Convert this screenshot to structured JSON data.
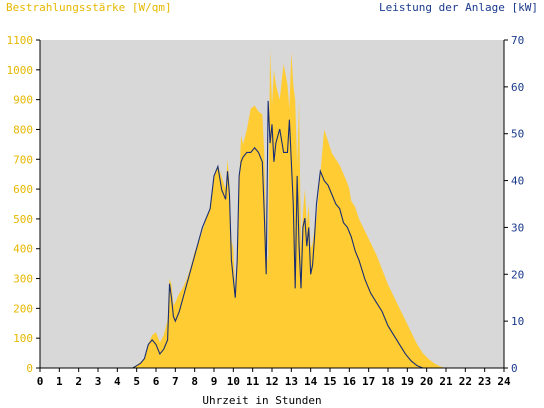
{
  "colors": {
    "plot_background": "#d8d8d8",
    "irradiance_fill": "#ffcc33",
    "power_line": "#1a2f73",
    "left_axis_text": "#e6b800",
    "right_axis_text": "#1a3a8c",
    "axis_text": "#000000",
    "axis_line": "#000000"
  },
  "chart_data": {
    "type": "area",
    "left_axis_title": "Bestrahlungsstärke [W/qm]",
    "right_axis_title": "Leistung der Anlage [kW]",
    "xlabel": "Uhrzeit in Stunden",
    "xlim": [
      0,
      24
    ],
    "ylim_left": [
      0,
      1100
    ],
    "ylim_right": [
      0,
      70
    ],
    "x_ticks": [
      "0",
      "1",
      "2",
      "3",
      "4",
      "5",
      "6",
      "7",
      "8",
      "9",
      "10",
      "11",
      "12",
      "13",
      "14",
      "15",
      "16",
      "17",
      "18",
      "19",
      "20",
      "21",
      "22",
      "23",
      "24"
    ],
    "y_left_ticks": [
      "0",
      "100",
      "200",
      "300",
      "400",
      "500",
      "600",
      "700",
      "800",
      "900",
      "1000",
      "1100"
    ],
    "y_right_ticks": [
      "0",
      "10",
      "20",
      "30",
      "40",
      "50",
      "60",
      "70"
    ],
    "grid": false,
    "series": [
      {
        "name": "Bestrahlungsstärke [W/qm]",
        "axis": "left",
        "style": "area",
        "x": [
          0,
          4.8,
          5.0,
          5.2,
          5.4,
          5.6,
          5.8,
          6.0,
          6.2,
          6.4,
          6.6,
          6.7,
          6.8,
          6.9,
          7.0,
          7.2,
          7.4,
          7.6,
          7.8,
          8.0,
          8.2,
          8.4,
          8.6,
          8.8,
          9.0,
          9.2,
          9.4,
          9.6,
          9.7,
          9.8,
          9.9,
          10.0,
          10.1,
          10.2,
          10.3,
          10.4,
          10.5,
          10.7,
          10.9,
          11.1,
          11.3,
          11.5,
          11.6,
          11.7,
          11.8,
          11.9,
          12.0,
          12.1,
          12.2,
          12.4,
          12.6,
          12.8,
          12.9,
          13.0,
          13.1,
          13.2,
          13.3,
          13.4,
          13.5,
          13.6,
          13.7,
          13.8,
          13.9,
          14.0,
          14.1,
          14.2,
          14.3,
          14.5,
          14.7,
          14.9,
          15.1,
          15.3,
          15.5,
          15.7,
          15.9,
          16.0,
          16.1,
          16.3,
          16.5,
          16.8,
          17.1,
          17.4,
          17.7,
          18.0,
          18.3,
          18.6,
          18.9,
          19.2,
          19.5,
          19.8,
          20.1,
          20.4,
          20.7,
          21.0,
          24
        ],
        "values": [
          0,
          0,
          10,
          20,
          30,
          80,
          110,
          120,
          85,
          110,
          160,
          300,
          280,
          210,
          220,
          250,
          270,
          300,
          340,
          390,
          420,
          460,
          500,
          540,
          640,
          680,
          640,
          600,
          700,
          620,
          430,
          400,
          260,
          330,
          620,
          780,
          750,
          800,
          870,
          880,
          860,
          850,
          720,
          400,
          350,
          1070,
          880,
          1000,
          950,
          900,
          1020,
          950,
          870,
          1060,
          950,
          900,
          680,
          900,
          400,
          520,
          600,
          480,
          550,
          400,
          420,
          470,
          500,
          650,
          800,
          760,
          720,
          700,
          680,
          650,
          620,
          600,
          560,
          540,
          500,
          460,
          420,
          380,
          330,
          280,
          240,
          200,
          160,
          120,
          80,
          50,
          30,
          15,
          5,
          0,
          0
        ]
      },
      {
        "name": "Leistung der Anlage [kW]",
        "axis": "right",
        "style": "line",
        "x": [
          0,
          4.8,
          5.0,
          5.2,
          5.4,
          5.6,
          5.8,
          6.0,
          6.2,
          6.4,
          6.6,
          6.7,
          6.8,
          6.9,
          7.0,
          7.2,
          7.4,
          7.6,
          7.8,
          8.0,
          8.2,
          8.4,
          8.6,
          8.8,
          9.0,
          9.2,
          9.4,
          9.6,
          9.7,
          9.8,
          9.9,
          10.0,
          10.1,
          10.2,
          10.3,
          10.4,
          10.5,
          10.7,
          10.9,
          11.1,
          11.3,
          11.5,
          11.6,
          11.7,
          11.8,
          11.9,
          12.0,
          12.1,
          12.2,
          12.4,
          12.6,
          12.8,
          12.9,
          13.0,
          13.1,
          13.2,
          13.3,
          13.4,
          13.5,
          13.6,
          13.7,
          13.8,
          13.9,
          14.0,
          14.1,
          14.2,
          14.3,
          14.5,
          14.7,
          14.9,
          15.1,
          15.3,
          15.5,
          15.7,
          15.9,
          16.0,
          16.1,
          16.3,
          16.5,
          16.8,
          17.1,
          17.4,
          17.7,
          18.0,
          18.3,
          18.6,
          18.9,
          19.2,
          19.5,
          19.8,
          20.1,
          20.4,
          20.7,
          21.0,
          24
        ],
        "values": [
          0,
          0,
          0.5,
          1,
          2,
          5,
          6,
          5,
          3,
          4,
          6,
          18,
          15,
          11,
          10,
          12,
          15,
          18,
          21,
          24,
          27,
          30,
          32,
          34,
          41,
          43,
          38,
          36,
          42,
          37,
          23,
          19,
          15,
          23,
          41,
          44,
          45,
          46,
          46,
          47,
          46,
          44,
          33,
          20,
          57,
          48,
          52,
          44,
          48,
          51,
          46,
          46,
          53,
          44,
          35,
          17,
          41,
          26,
          17,
          30,
          32,
          26,
          30,
          20,
          22,
          28,
          35,
          42,
          40,
          39,
          37,
          35,
          34,
          31,
          30,
          29,
          28,
          25,
          23,
          19,
          16,
          14,
          12,
          9,
          7,
          5,
          3,
          1.5,
          0.5,
          0,
          0,
          0,
          0,
          0,
          0
        ]
      }
    ]
  }
}
